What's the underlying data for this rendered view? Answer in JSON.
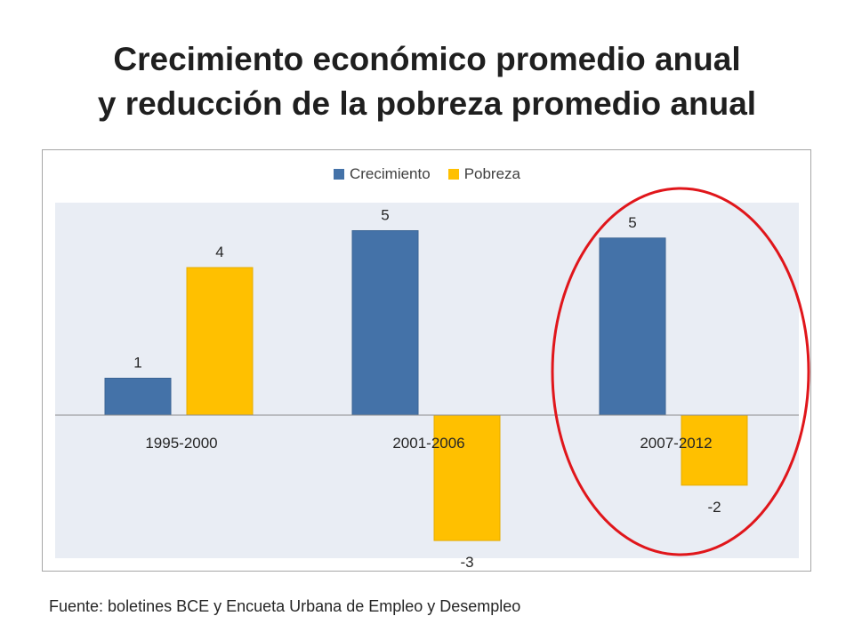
{
  "chart_data": {
    "type": "bar",
    "title_lines": [
      "Crecimiento económico promedio anual",
      "y reducción de la pobreza promedio anual"
    ],
    "categories": [
      "1995-2000",
      "2001-2006",
      "2007-2012"
    ],
    "series": [
      {
        "name": "Crecimiento",
        "color": "#4472a8",
        "values": [
          1.0,
          5.0,
          4.8
        ],
        "labels": [
          "1",
          "5",
          "5"
        ]
      },
      {
        "name": "Pobreza",
        "color": "#ffc000",
        "values": [
          4.0,
          -3.4,
          -1.9
        ],
        "labels": [
          "4",
          "-3",
          "-2"
        ]
      }
    ],
    "xlabel": "",
    "ylabel": "",
    "legend_position": "top",
    "grid": false,
    "plot_background": "#e9edf4",
    "highlight": {
      "category": "2007-2012",
      "shape": "ellipse",
      "color": "#e0161b"
    }
  },
  "source_note": "Fuente: boletines BCE y Encueta Urbana de Empleo y Desempleo"
}
